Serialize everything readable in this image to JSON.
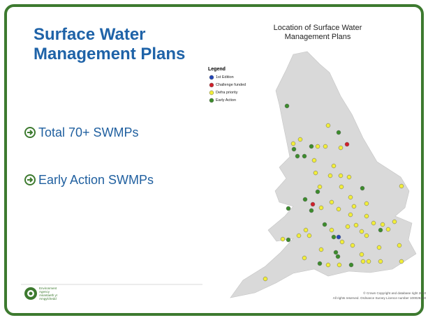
{
  "slide": {
    "title": "Surface Water Management Plans",
    "bullets": [
      "Total 70+ SWMPs",
      "Early Action SWMPs"
    ],
    "logo": [
      "Environment Agency",
      "Asiantaeth yr Amgylchedd"
    ]
  },
  "map": {
    "title": "Location of Surface Water Management Plans",
    "legend": {
      "title": "Legend",
      "items": [
        {
          "label": "1st Edition",
          "color": "#2447b8"
        },
        {
          "label": "Challenge funded",
          "color": "#d0202a"
        },
        {
          "label": "Defra priority",
          "color": "#f2ee3a"
        },
        {
          "label": "Early Action",
          "color": "#3c8c2c"
        }
      ]
    },
    "copyright": [
      "© Crown Copyright and database right 2010",
      "All rights reserved. Ordnance Survey Licence number 100026380"
    ]
  }
}
